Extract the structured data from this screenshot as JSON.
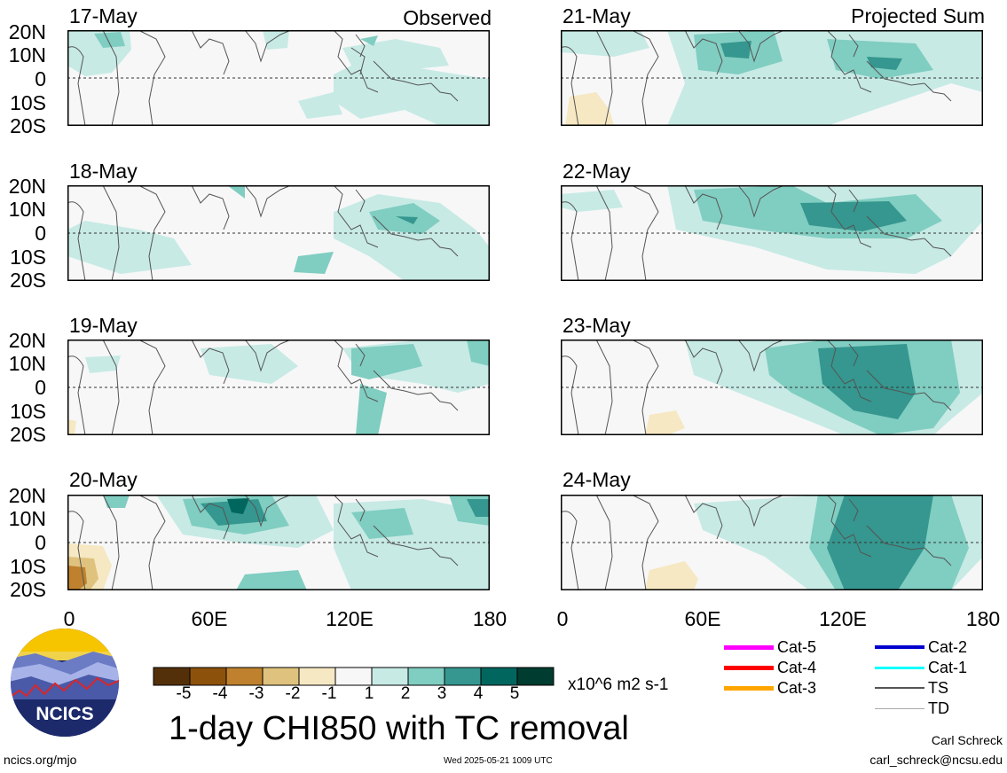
{
  "panels": {
    "left": [
      {
        "date": "17-May",
        "label": "Observed"
      },
      {
        "date": "18-May",
        "label": ""
      },
      {
        "date": "19-May",
        "label": ""
      },
      {
        "date": "20-May",
        "label": ""
      }
    ],
    "right": [
      {
        "date": "21-May",
        "label": "Projected Sum"
      },
      {
        "date": "22-May",
        "label": ""
      },
      {
        "date": "23-May",
        "label": ""
      },
      {
        "date": "24-May",
        "label": ""
      }
    ]
  },
  "lat_labels": [
    "20N",
    "10N",
    "0",
    "10S",
    "20S"
  ],
  "lon_labels": [
    "0",
    "60E",
    "120E",
    "180"
  ],
  "colorbar": {
    "ticks": [
      "-5",
      "-4",
      "-3",
      "-2",
      "-1",
      "1",
      "2",
      "3",
      "4",
      "5"
    ],
    "units": "x10^6 m2 s-1",
    "colors": [
      "#54300a",
      "#8c510a",
      "#bf812d",
      "#dfc27d",
      "#f6e8c3",
      "#f7f7f7",
      "#c7eae5",
      "#80cdc1",
      "#35978f",
      "#01665e",
      "#003c30"
    ]
  },
  "title": "1-day CHI850 with TC removal",
  "legend": [
    {
      "label": "Cat-5",
      "color": "#ff00ff"
    },
    {
      "label": "Cat-4",
      "color": "#ff0000"
    },
    {
      "label": "Cat-3",
      "color": "#ffa500"
    },
    {
      "label": "Cat-2",
      "color": "#0000cd"
    },
    {
      "label": "Cat-1",
      "color": "#00ffff"
    },
    {
      "label": "TS",
      "color": "#555555"
    },
    {
      "label": "TD",
      "color": "#aaaaaa"
    }
  ],
  "logo_text": "NCICS",
  "footer": {
    "url": "ncics.org/mjo",
    "timestamp": "Wed 2025-05-21 1009 UTC",
    "author": "Carl Schreck",
    "email": "carl_schreck@ncsu.edu"
  }
}
